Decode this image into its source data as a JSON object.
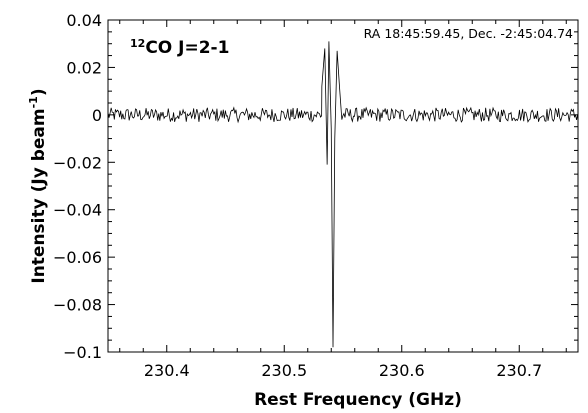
{
  "chart_data": {
    "type": "line",
    "xlabel": "Rest Frequency (GHz)",
    "ylabel_main": "Intensity (Jy beam",
    "ylabel_sup": "-1",
    "ylabel_close": ")",
    "xlim": [
      230.35,
      230.75
    ],
    "ylim": [
      -0.1,
      0.04
    ],
    "x_ticks": [
      230.4,
      230.5,
      230.6,
      230.7
    ],
    "x_tick_labels": [
      "230.4",
      "230.5",
      "230.6",
      "230.7"
    ],
    "y_ticks": [
      0.04,
      0.02,
      0,
      -0.02,
      -0.04,
      -0.06,
      -0.08,
      -0.1
    ],
    "y_tick_labels": [
      "0.04",
      "0.02",
      "0",
      "−0.02",
      "−0.04",
      "−0.06",
      "−0.08",
      "−0.1"
    ],
    "annotation_position": "RA 18:45:59.45, Dec. -2:45:04.74",
    "line_label_sup": "12",
    "line_label": "CO J=2-1",
    "grid": false,
    "noise_level": 0.003,
    "baseline": 0,
    "x_start": 230.35,
    "x_end": 230.75,
    "features": [
      {
        "x": 230.532,
        "y": 0.012
      },
      {
        "x": 230.5345,
        "y": 0.028
      },
      {
        "x": 230.5365,
        "y": -0.021
      },
      {
        "x": 230.538,
        "y": 0.031
      },
      {
        "x": 230.54,
        "y": -0.006
      },
      {
        "x": 230.5415,
        "y": -0.098
      },
      {
        "x": 230.543,
        "y": -0.01
      },
      {
        "x": 230.545,
        "y": 0.027
      },
      {
        "x": 230.547,
        "y": 0.012
      },
      {
        "x": 230.549,
        "y": -0.002
      }
    ]
  }
}
